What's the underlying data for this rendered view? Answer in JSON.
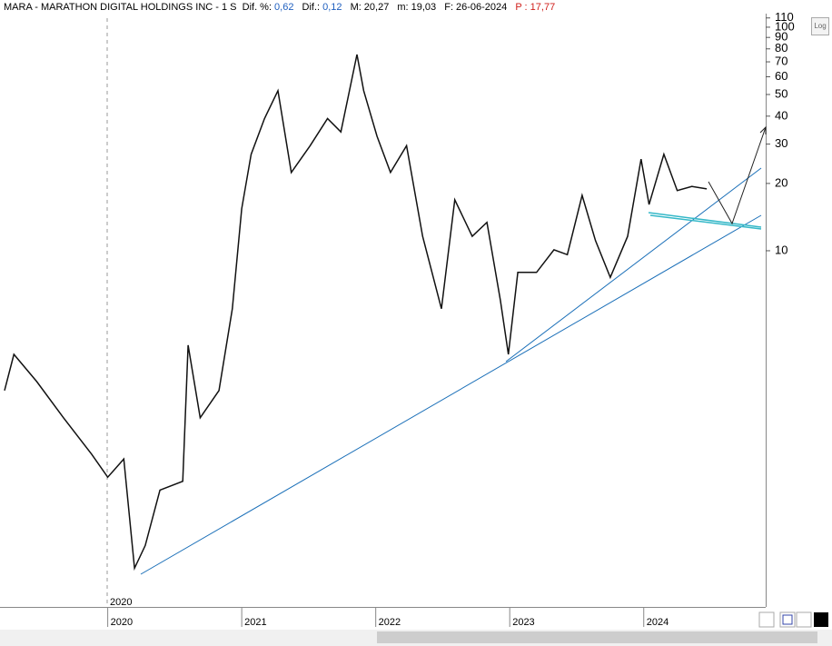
{
  "header": {
    "symbol": "MARA - MARATHON DIGITAL HOLDINGS INC - 1 S",
    "fields": [
      {
        "label": "Dif. %:",
        "value": "0,62"
      },
      {
        "label": "Dif.:",
        "value": "0,12"
      },
      {
        "label": "M:",
        "value": "20,27"
      },
      {
        "label": "m:",
        "value": "19,03"
      },
      {
        "label": "F:",
        "value": "26-06-2024"
      }
    ],
    "price_label": "P :",
    "price_value": "17,77",
    "log_button": "Log",
    "marker_label": "2020"
  },
  "chart_data": {
    "type": "line",
    "color": "#111111",
    "log_scale": true,
    "x": [
      2019.23,
      2019.3,
      2019.47,
      2019.67,
      2019.88,
      2020.0,
      2020.12,
      2020.2,
      2020.28,
      2020.39,
      2020.56,
      2020.6,
      2020.69,
      2020.83,
      2020.93,
      2021.0,
      2021.07,
      2021.17,
      2021.27,
      2021.37,
      2021.51,
      2021.64,
      2021.74,
      2021.86,
      2021.91,
      2022.01,
      2022.11,
      2022.23,
      2022.35,
      2022.49,
      2022.59,
      2022.72,
      2022.83,
      2022.93,
      2022.99,
      2023.06,
      2023.2,
      2023.33,
      2023.43,
      2023.54,
      2023.64,
      2023.75,
      2023.88,
      2023.98,
      2024.04,
      2024.15,
      2024.25,
      2024.36,
      2024.47
    ],
    "values": [
      2.37,
      3.44,
      2.6,
      1.79,
      1.23,
      0.97,
      1.17,
      0.38,
      0.48,
      0.85,
      0.93,
      3.78,
      1.79,
      2.37,
      5.5,
      15.4,
      27,
      39,
      52,
      22.4,
      29.5,
      39,
      34,
      75.5,
      52,
      32.5,
      22.4,
      29.5,
      11.6,
      5.5,
      16.9,
      11.6,
      13.4,
      6.0,
      3.44,
      8.0,
      8.0,
      10.1,
      9.6,
      17.7,
      11.1,
      7.6,
      11.6,
      25.7,
      16.1,
      27,
      18.6,
      19.4,
      18.9
    ],
    "xlim": [
      2019.23,
      2024.91
    ],
    "xticks": [
      2020,
      2021,
      2022,
      2023,
      2024
    ],
    "ylim": [
      0.255,
      115
    ],
    "yticks": [
      10,
      20,
      30,
      40,
      50,
      60,
      70,
      80,
      90,
      100,
      110
    ]
  }
}
